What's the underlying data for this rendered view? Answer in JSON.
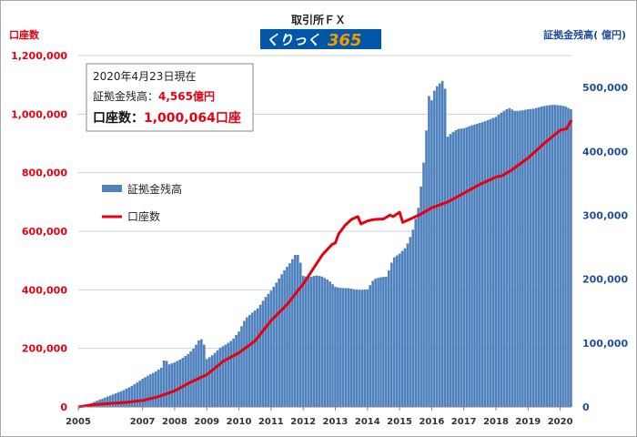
{
  "header": {
    "title": "取引所ＦＸ",
    "logo_text": "くりっく",
    "logo_num": "365"
  },
  "axis_titles": {
    "left": "口座数",
    "right": "証拠金残高( 億円)"
  },
  "info_box": {
    "date_line": "2020年4月23日現在",
    "deposit_label": "証拠金残高：",
    "deposit_value": "4,565億円",
    "accounts_label": "口座数：",
    "accounts_value": "1,000,064口座"
  },
  "legend": {
    "bar_label": "証拠金残高",
    "line_label": "口座数"
  },
  "colors": {
    "bar": "#4f81bd",
    "line": "#e60012",
    "left_axis_text": "#e60012",
    "right_axis_text": "#1f4e9a",
    "logo_orange": "#f39800",
    "logo_blue": "#0057a8"
  },
  "chart_data": {
    "type": "bar+line",
    "x_ticks": [
      "2005",
      "2007",
      "2008",
      "2009",
      "2010",
      "2011",
      "2012",
      "2013",
      "2014",
      "2015",
      "2016",
      "2017",
      "2018",
      "2019",
      "2020"
    ],
    "x_tick_years": [
      2005,
      2007,
      2008,
      2009,
      2010,
      2011,
      2012,
      2013,
      2014,
      2015,
      2016,
      2017,
      2018,
      2019,
      2020
    ],
    "left_axis": {
      "label": "口座数",
      "ylim": [
        0,
        1200000
      ],
      "ticks": [
        "0",
        "200,000",
        "400,000",
        "600,000",
        "800,000",
        "1,000,000",
        "1,200,000"
      ]
    },
    "right_axis": {
      "label": "証拠金残高( 億円)",
      "ylim": [
        0,
        550000
      ],
      "ticks": [
        "0",
        "100,000",
        "200,000",
        "300,000",
        "400,000",
        "500,000"
      ]
    },
    "grid": "horizontal",
    "series": [
      {
        "name": "証拠金残高",
        "type": "bar",
        "axis": "right",
        "points": [
          [
            2005.2,
            2000
          ],
          [
            2005.4,
            6000
          ],
          [
            2005.6,
            10000
          ],
          [
            2005.8,
            14000
          ],
          [
            2006.0,
            18000
          ],
          [
            2006.2,
            22000
          ],
          [
            2006.4,
            26000
          ],
          [
            2006.6,
            31000
          ],
          [
            2006.8,
            37000
          ],
          [
            2007.0,
            44000
          ],
          [
            2007.2,
            50000
          ],
          [
            2007.4,
            55000
          ],
          [
            2007.6,
            62000
          ],
          [
            2007.7,
            78000
          ],
          [
            2007.8,
            66000
          ],
          [
            2007.9,
            68000
          ],
          [
            2008.0,
            70000
          ],
          [
            2008.2,
            75000
          ],
          [
            2008.4,
            82000
          ],
          [
            2008.6,
            92000
          ],
          [
            2008.8,
            108000
          ],
          [
            2008.9,
            102000
          ],
          [
            2009.0,
            75000
          ],
          [
            2009.2,
            82000
          ],
          [
            2009.4,
            92000
          ],
          [
            2009.6,
            98000
          ],
          [
            2009.8,
            105000
          ],
          [
            2010.0,
            118000
          ],
          [
            2010.2,
            138000
          ],
          [
            2010.4,
            147000
          ],
          [
            2010.6,
            155000
          ],
          [
            2010.8,
            170000
          ],
          [
            2011.0,
            182000
          ],
          [
            2011.2,
            197000
          ],
          [
            2011.4,
            213000
          ],
          [
            2011.6,
            226000
          ],
          [
            2011.8,
            242000
          ],
          [
            2011.9,
            230000
          ],
          [
            2012.0,
            205000
          ],
          [
            2012.2,
            203000
          ],
          [
            2012.4,
            206000
          ],
          [
            2012.6,
            204000
          ],
          [
            2012.8,
            198000
          ],
          [
            2013.0,
            188000
          ],
          [
            2013.2,
            186000
          ],
          [
            2013.4,
            186000
          ],
          [
            2013.6,
            184000
          ],
          [
            2013.8,
            183000
          ],
          [
            2014.0,
            184000
          ],
          [
            2014.2,
            200000
          ],
          [
            2014.4,
            203000
          ],
          [
            2014.6,
            204000
          ],
          [
            2014.8,
            233000
          ],
          [
            2015.0,
            240000
          ],
          [
            2015.2,
            250000
          ],
          [
            2015.4,
            274000
          ],
          [
            2015.6,
            315000
          ],
          [
            2015.8,
            405000
          ],
          [
            2015.9,
            488000
          ],
          [
            2016.0,
            480000
          ],
          [
            2016.1,
            498000
          ],
          [
            2016.2,
            504000
          ],
          [
            2016.3,
            509000
          ],
          [
            2016.4,
            513000
          ],
          [
            2016.5,
            423000
          ],
          [
            2016.6,
            428000
          ],
          [
            2016.8,
            435000
          ],
          [
            2017.0,
            436000
          ],
          [
            2017.2,
            440000
          ],
          [
            2017.4,
            443000
          ],
          [
            2017.6,
            446000
          ],
          [
            2017.8,
            450000
          ],
          [
            2018.0,
            454000
          ],
          [
            2018.2,
            462000
          ],
          [
            2018.4,
            468000
          ],
          [
            2018.6,
            463000
          ],
          [
            2018.8,
            464000
          ],
          [
            2019.0,
            466000
          ],
          [
            2019.2,
            467000
          ],
          [
            2019.4,
            470000
          ],
          [
            2019.6,
            472000
          ],
          [
            2019.8,
            473000
          ],
          [
            2020.0,
            472000
          ],
          [
            2020.2,
            470000
          ],
          [
            2020.3,
            466000
          ]
        ]
      },
      {
        "name": "口座数",
        "type": "line",
        "axis": "left",
        "points": [
          [
            2005.0,
            0
          ],
          [
            2005.5,
            8000
          ],
          [
            2006.0,
            12000
          ],
          [
            2006.5,
            16000
          ],
          [
            2007.0,
            22000
          ],
          [
            2007.5,
            35000
          ],
          [
            2008.0,
            55000
          ],
          [
            2008.5,
            85000
          ],
          [
            2009.0,
            110000
          ],
          [
            2009.5,
            155000
          ],
          [
            2010.0,
            185000
          ],
          [
            2010.5,
            225000
          ],
          [
            2011.0,
            295000
          ],
          [
            2011.5,
            350000
          ],
          [
            2012.0,
            420000
          ],
          [
            2012.3,
            470000
          ],
          [
            2012.6,
            520000
          ],
          [
            2012.9,
            555000
          ],
          [
            2013.0,
            560000
          ],
          [
            2013.1,
            590000
          ],
          [
            2013.3,
            620000
          ],
          [
            2013.5,
            640000
          ],
          [
            2013.7,
            650000
          ],
          [
            2013.8,
            625000
          ],
          [
            2014.0,
            635000
          ],
          [
            2014.2,
            640000
          ],
          [
            2014.5,
            642000
          ],
          [
            2014.7,
            655000
          ],
          [
            2014.8,
            650000
          ],
          [
            2015.0,
            665000
          ],
          [
            2015.1,
            630000
          ],
          [
            2015.3,
            640000
          ],
          [
            2015.6,
            655000
          ],
          [
            2016.0,
            680000
          ],
          [
            2016.5,
            700000
          ],
          [
            2017.0,
            730000
          ],
          [
            2017.5,
            760000
          ],
          [
            2018.0,
            785000
          ],
          [
            2018.2,
            790000
          ],
          [
            2018.5,
            810000
          ],
          [
            2019.0,
            850000
          ],
          [
            2019.5,
            900000
          ],
          [
            2020.0,
            945000
          ],
          [
            2020.2,
            950000
          ],
          [
            2020.35,
            980000
          ]
        ]
      }
    ]
  }
}
